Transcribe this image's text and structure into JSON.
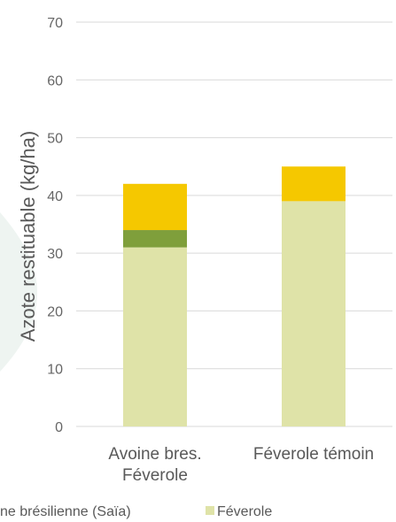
{
  "chart_data": {
    "type": "bar",
    "stacked": true,
    "title": "",
    "xlabel": "",
    "ylabel": "Azote restituable (kg/ha)",
    "ylim": [
      0,
      70
    ],
    "yticks": [
      0,
      10,
      20,
      30,
      40,
      50,
      60,
      70
    ],
    "grid": true,
    "legend_position": "bottom",
    "categories": [
      {
        "lines": [
          "Avoine bres.",
          "Féverole"
        ]
      },
      {
        "lines": [
          "Féverole témoin"
        ]
      }
    ],
    "series": [
      {
        "name": "Féverole",
        "color": "#dfe3a8",
        "values": [
          31,
          39
        ]
      },
      {
        "name": "",
        "color": "#7f9f3b",
        "values": [
          3,
          0
        ]
      },
      {
        "name": "",
        "color": "#f5c800",
        "values": [
          8,
          6
        ]
      }
    ],
    "legend": [
      {
        "label": "ne brésilienne (Saïa)",
        "color": "",
        "marker": false
      },
      {
        "label": "Féverole",
        "color": "#dfe3a8",
        "marker": true
      }
    ]
  }
}
